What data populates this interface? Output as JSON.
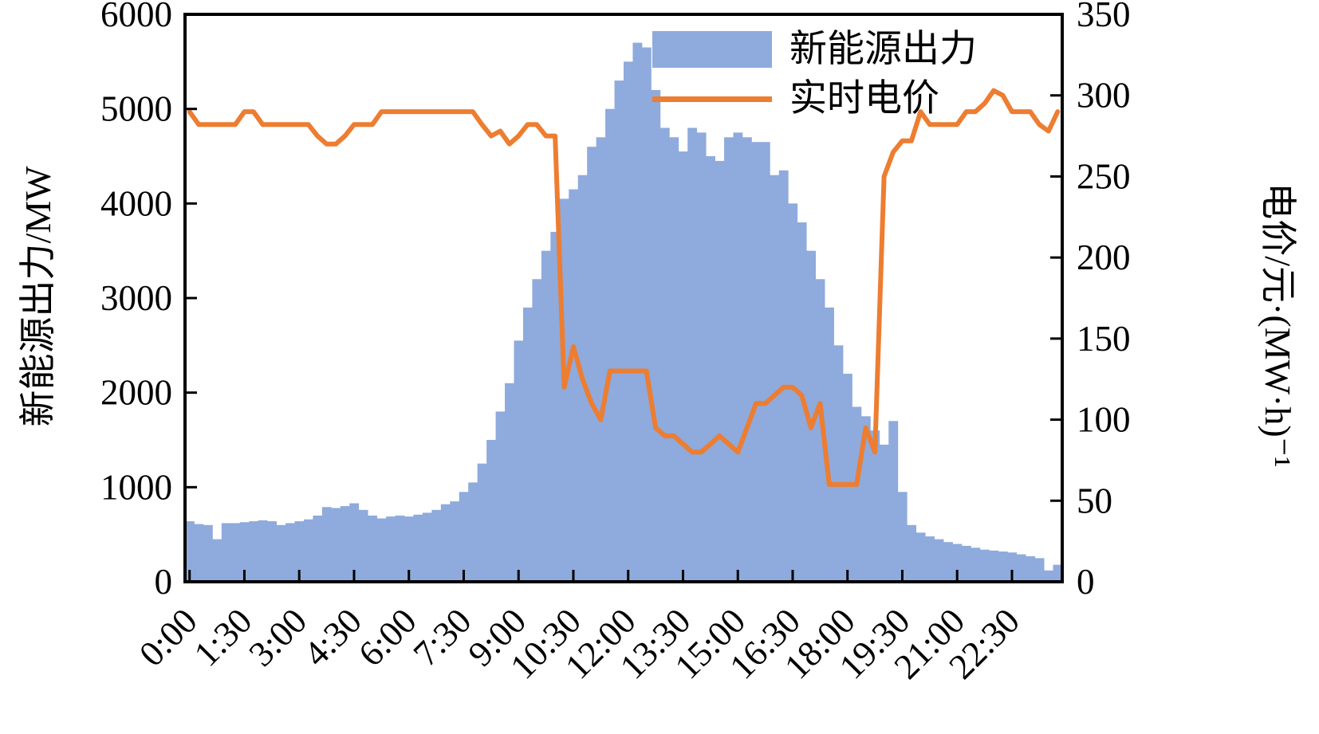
{
  "chart_data": {
    "type": "bar",
    "combo": "bar+line dual-axis",
    "x_resolution_minutes": 15,
    "x_tick_labels": [
      "0:00",
      "1:30",
      "3:00",
      "4:30",
      "6:00",
      "7:30",
      "9:00",
      "10:30",
      "12:00",
      "13:30",
      "15:00",
      "16:30",
      "18:00",
      "19:30",
      "21:00",
      "22:30"
    ],
    "x_ticks_every_points": 6,
    "left_axis": {
      "label": "新能源出力/MW",
      "min": 0,
      "max": 6000,
      "step": 1000
    },
    "right_axis": {
      "label": "电价/元·(MW·h)⁻¹",
      "min": 0,
      "max": 350,
      "step": 50
    },
    "grid": false,
    "legend_position": "top-center-inside",
    "frame_color": "#000000",
    "series": [
      {
        "name": "新能源出力",
        "type": "bar",
        "axis": "left",
        "color": "#8FAADC",
        "values": [
          640,
          610,
          600,
          450,
          620,
          620,
          630,
          640,
          650,
          640,
          600,
          620,
          640,
          660,
          700,
          790,
          780,
          800,
          830,
          760,
          700,
          670,
          690,
          700,
          690,
          710,
          730,
          760,
          820,
          850,
          950,
          1050,
          1250,
          1500,
          1800,
          2100,
          2550,
          2900,
          3200,
          3500,
          3700,
          4050,
          4150,
          4300,
          4600,
          4700,
          5000,
          5300,
          5500,
          5700,
          5650,
          5200,
          4800,
          4700,
          4550,
          4800,
          4750,
          4500,
          4450,
          4700,
          4750,
          4700,
          4650,
          4650,
          4300,
          4350,
          4000,
          3800,
          3500,
          3200,
          2900,
          2500,
          2200,
          1850,
          1750,
          1600,
          1450,
          1700,
          950,
          600,
          520,
          480,
          450,
          420,
          400,
          380,
          360,
          340,
          330,
          320,
          310,
          290,
          270,
          250,
          120,
          180
        ]
      },
      {
        "name": "实时电价",
        "type": "line",
        "axis": "right",
        "color": "#ED7D31",
        "values": [
          290,
          282,
          282,
          282,
          282,
          282,
          290,
          290,
          282,
          282,
          282,
          282,
          282,
          282,
          275,
          270,
          270,
          275,
          282,
          282,
          282,
          290,
          290,
          290,
          290,
          290,
          290,
          290,
          290,
          290,
          290,
          290,
          282,
          275,
          278,
          270,
          275,
          282,
          282,
          275,
          275,
          120,
          145,
          125,
          110,
          100,
          130,
          130,
          130,
          130,
          130,
          95,
          90,
          90,
          85,
          80,
          80,
          85,
          90,
          85,
          80,
          95,
          110,
          110,
          115,
          120,
          120,
          115,
          95,
          110,
          60,
          60,
          60,
          60,
          95,
          80,
          250,
          265,
          272,
          272,
          290,
          282,
          282,
          282,
          282,
          290,
          290,
          295,
          303,
          300,
          290,
          290,
          290,
          282,
          278,
          290
        ]
      }
    ]
  },
  "legend": {
    "bar_label": "新能源出力",
    "line_label": "实时电价"
  }
}
